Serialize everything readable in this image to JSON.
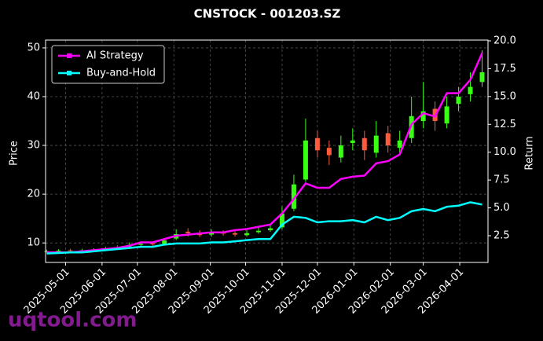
{
  "chart_data": {
    "type": "candlestick",
    "title": "CNSTOCK - 001203.SZ",
    "ylabel": "Price",
    "y2label": "Return",
    "watermark": "uqtool.com",
    "x": [
      "2025-04-15",
      "2025-04-25",
      "2025-05-05",
      "2025-05-15",
      "2025-05-25",
      "2025-06-04",
      "2025-06-14",
      "2025-06-24",
      "2025-07-04",
      "2025-07-14",
      "2025-07-24",
      "2025-08-03",
      "2025-08-13",
      "2025-08-23",
      "2025-09-02",
      "2025-09-12",
      "2025-09-22",
      "2025-10-02",
      "2025-10-12",
      "2025-10-22",
      "2025-11-01",
      "2025-11-11",
      "2025-11-21",
      "2025-12-01",
      "2025-12-11",
      "2025-12-21",
      "2025-12-31",
      "2026-01-10",
      "2026-01-20",
      "2026-01-30",
      "2026-02-09",
      "2026-02-19",
      "2026-03-01",
      "2026-03-11",
      "2026-03-21",
      "2026-03-31",
      "2026-04-10",
      "2026-04-20"
    ],
    "open": [
      8.2,
      8.4,
      8.5,
      8.4,
      8.5,
      8.7,
      9.1,
      9.2,
      9.6,
      9.9,
      9.8,
      10.9,
      12.3,
      12.1,
      11.7,
      12.2,
      12.0,
      11.6,
      12.2,
      12.6,
      13.2,
      17,
      23,
      31.5,
      29.5,
      27.5,
      30.5,
      31.5,
      28.5,
      32.5,
      29.5,
      31.5,
      35,
      37.5,
      34.5,
      38.5,
      40.5,
      43
    ],
    "high": [
      8.6,
      8.7,
      8.8,
      8.8,
      8.9,
      9.2,
      9.5,
      10.1,
      10.3,
      10.3,
      11,
      12.8,
      13,
      12.6,
      12.8,
      12.6,
      12.4,
      12.6,
      13.2,
      13.8,
      17.5,
      24,
      35.5,
      33,
      31,
      32,
      33.5,
      33,
      35,
      34,
      33,
      40,
      43,
      39,
      40,
      42,
      45,
      49.5
    ],
    "low": [
      8.0,
      8.2,
      8.2,
      8.2,
      8.3,
      8.5,
      8.8,
      9.0,
      9.4,
      9.4,
      9.5,
      10.6,
      11.3,
      11.2,
      11.3,
      11.5,
      11.3,
      11.3,
      11.9,
      12.3,
      12.8,
      16.5,
      22.5,
      27.5,
      26,
      26.5,
      29,
      27,
      27.5,
      28.5,
      28,
      30.5,
      33.5,
      33,
      33.5,
      37,
      39,
      42
    ],
    "close": [
      8.3,
      8.4,
      8.4,
      8.5,
      8.6,
      8.8,
      9.0,
      9.5,
      9.8,
      9.7,
      10.5,
      11.8,
      12.0,
      11.6,
      12.1,
      11.9,
      11.7,
      12.0,
      12.5,
      13.0,
      16,
      22,
      31,
      29,
      28,
      30,
      31,
      29,
      32,
      30,
      31,
      36,
      37,
      35,
      38,
      40,
      42,
      45
    ],
    "up_color": "#39ff14",
    "down_color": "#ff5a3c",
    "series": [
      {
        "name": "AI Strategy",
        "color": "#ff00ff",
        "axis": "y2",
        "values": [
          1.0,
          1.0,
          1.0,
          1.1,
          1.2,
          1.3,
          1.4,
          1.6,
          1.9,
          1.9,
          2.2,
          2.5,
          2.6,
          2.7,
          2.8,
          2.8,
          3.0,
          3.1,
          3.3,
          3.5,
          4.5,
          5.8,
          7.2,
          6.8,
          6.8,
          7.6,
          7.8,
          7.9,
          9.0,
          9.2,
          9.8,
          12.5,
          13.5,
          13.2,
          15.3,
          15.3,
          16.5,
          18.9
        ]
      },
      {
        "name": "Buy-and-Hold",
        "color": "#00ffff",
        "axis": "y2",
        "values": [
          0.9,
          0.95,
          1.0,
          1.0,
          1.1,
          1.2,
          1.3,
          1.4,
          1.5,
          1.5,
          1.7,
          1.8,
          1.8,
          1.8,
          1.9,
          1.9,
          2.0,
          2.1,
          2.2,
          2.2,
          3.5,
          4.2,
          4.1,
          3.7,
          3.8,
          3.8,
          3.9,
          3.7,
          4.2,
          3.9,
          4.1,
          4.7,
          4.9,
          4.7,
          5.1,
          5.2,
          5.5,
          5.3
        ]
      }
    ],
    "xlim": [
      "2025-04-14",
      "2026-04-25"
    ],
    "xticks": [
      "2025-05-01",
      "2025-06-01",
      "2025-07-01",
      "2025-08-01",
      "2025-09-01",
      "2025-10-01",
      "2025-11-01",
      "2025-12-01",
      "2026-01-01",
      "2026-02-01",
      "2026-03-01",
      "2026-04-01"
    ],
    "ylim": [
      6,
      51.6
    ],
    "yticks": [
      10,
      20,
      30,
      40,
      50
    ],
    "y2lim": [
      0.1,
      20.07
    ],
    "y2ticks": [
      2.5,
      {
        "value": 5,
        "label": "5.0"
      },
      7.5,
      {
        "value": 10,
        "label": "10.0"
      },
      12.5,
      {
        "value": 15,
        "label": "15.0"
      },
      17.5,
      {
        "value": 20,
        "label": "20.0"
      }
    ],
    "grid": true,
    "legend": "upper left"
  }
}
